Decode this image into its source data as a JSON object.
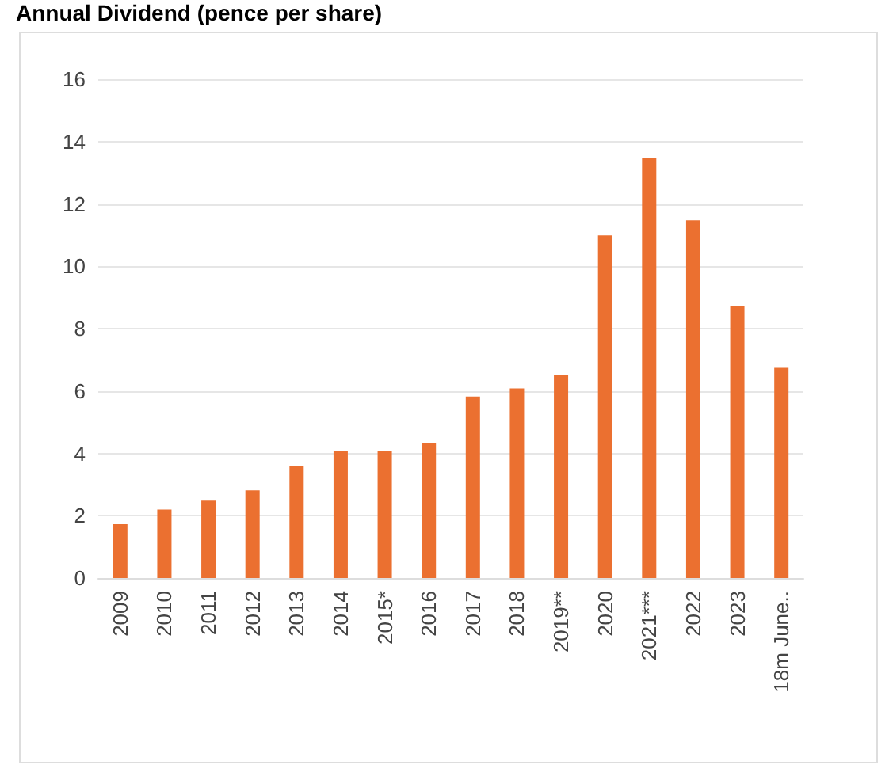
{
  "chart_data": {
    "type": "bar",
    "title": "Annual Dividend (pence per share)",
    "categories": [
      "2009",
      "2010",
      "2011",
      "2012",
      "2013",
      "2014",
      "2015*",
      "2016",
      "2017",
      "2018",
      "2019**",
      "2020",
      "2021***",
      "2022",
      "2023",
      "18m June.."
    ],
    "values": [
      1.73,
      2.2,
      2.48,
      2.81,
      3.59,
      4.07,
      4.07,
      4.33,
      5.82,
      6.08,
      6.52,
      10.99,
      13.47,
      11.47,
      8.72,
      6.74
    ],
    "color": "#eb7030",
    "ylim": [
      0,
      16
    ],
    "yticks": [
      0,
      2,
      4,
      6,
      8,
      10,
      12,
      14,
      16
    ],
    "grid": "y"
  }
}
